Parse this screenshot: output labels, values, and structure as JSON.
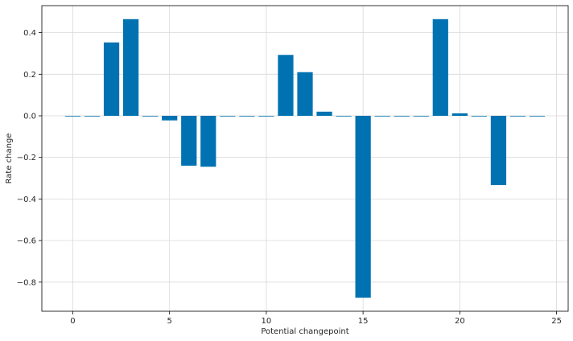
{
  "chart_data": {
    "type": "bar",
    "title": "",
    "xlabel": "Potential changepoint",
    "ylabel": "Rate change",
    "x": [
      0,
      1,
      2,
      3,
      4,
      5,
      6,
      7,
      8,
      9,
      10,
      11,
      12,
      13,
      14,
      15,
      16,
      17,
      18,
      19,
      20,
      21,
      22,
      23,
      24
    ],
    "values": [
      -0.003,
      -0.003,
      0.353,
      0.465,
      -0.003,
      -0.022,
      -0.24,
      -0.245,
      -0.003,
      -0.003,
      -0.003,
      0.293,
      0.21,
      0.02,
      -0.003,
      -0.875,
      -0.003,
      -0.003,
      -0.003,
      0.465,
      0.012,
      -0.003,
      -0.333,
      -0.003,
      -0.003
    ],
    "xlim": [
      -1.6,
      25.6
    ],
    "ylim": [
      -0.94,
      0.53
    ],
    "xticks": [
      0,
      5,
      10,
      15,
      20,
      25
    ],
    "yticks": [
      -0.8,
      -0.6,
      -0.4,
      -0.2,
      0.0,
      0.2,
      0.4
    ],
    "ytick_labels": [
      "−0.8",
      "−0.6",
      "−0.4",
      "−0.2",
      "0.0",
      "0.2",
      "0.4"
    ],
    "grid": true,
    "bar_color": "#0072b2"
  }
}
